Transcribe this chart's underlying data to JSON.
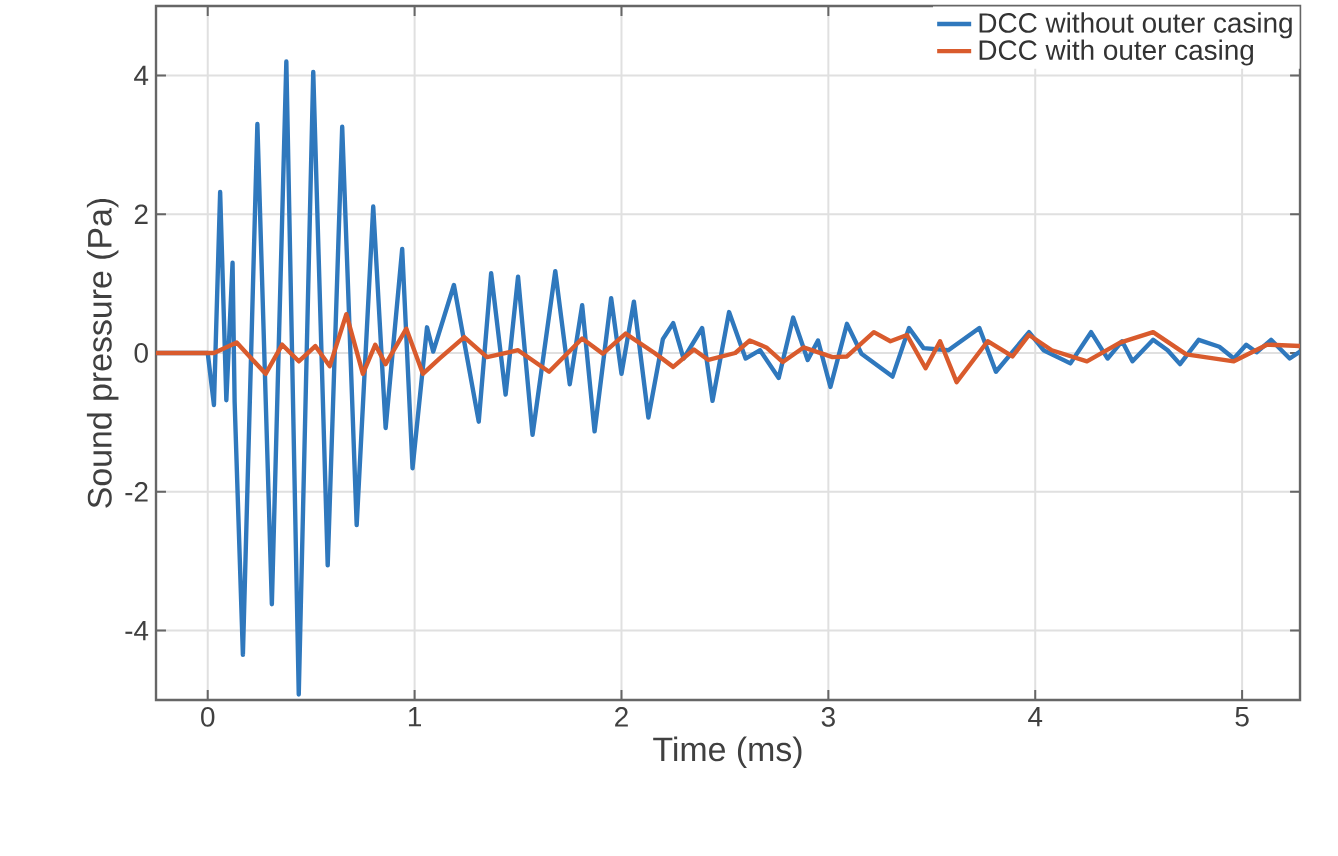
{
  "chart_data": {
    "type": "line",
    "xlabel": "Time (ms)",
    "ylabel": "Sound pressure (Pa)",
    "xlim": [
      -0.25,
      5.28
    ],
    "ylim": [
      -5,
      5
    ],
    "xticks": [
      0,
      1,
      2,
      3,
      4,
      5
    ],
    "yticks": [
      -4,
      -2,
      0,
      2,
      4
    ],
    "grid": true,
    "legend": "top right",
    "line_style": "solid",
    "marker": "none",
    "series": [
      {
        "name": "DCC without outer casing",
        "color": "#2f78bd",
        "x": [
          -0.25,
          0.0,
          0.03,
          0.06,
          0.09,
          0.12,
          0.13,
          0.17,
          0.24,
          0.31,
          0.38,
          0.44,
          0.51,
          0.58,
          0.65,
          0.72,
          0.8,
          0.86,
          0.94,
          0.99,
          1.06,
          1.09,
          1.19,
          1.31,
          1.37,
          1.44,
          1.5,
          1.57,
          1.68,
          1.75,
          1.81,
          1.87,
          1.95,
          2.0,
          2.06,
          2.13,
          2.2,
          2.25,
          2.3,
          2.39,
          2.44,
          2.52,
          2.6,
          2.67,
          2.76,
          2.83,
          2.9,
          2.95,
          3.01,
          3.09,
          3.16,
          3.31,
          3.39,
          3.46,
          3.58,
          3.73,
          3.81,
          3.97,
          4.04,
          4.17,
          4.27,
          4.35,
          4.42,
          4.47,
          4.57,
          4.64,
          4.7,
          4.79,
          4.89,
          4.96,
          5.02,
          5.07,
          5.14,
          5.23,
          5.28
        ],
        "values": [
          0,
          0,
          -0.75,
          2.32,
          -0.68,
          1.3,
          -0.7,
          -4.35,
          3.3,
          -3.62,
          4.2,
          -4.92,
          4.05,
          -3.06,
          3.26,
          -2.48,
          2.11,
          -1.08,
          1.5,
          -1.66,
          0.37,
          0.02,
          0.98,
          -0.99,
          1.15,
          -0.6,
          1.1,
          -1.18,
          1.18,
          -0.45,
          0.69,
          -1.13,
          0.79,
          -0.3,
          0.74,
          -0.93,
          0.2,
          0.43,
          -0.08,
          0.36,
          -0.69,
          0.59,
          -0.08,
          0.04,
          -0.36,
          0.51,
          -0.1,
          0.18,
          -0.49,
          0.42,
          -0.01,
          -0.34,
          0.36,
          0.07,
          0.04,
          0.36,
          -0.27,
          0.3,
          0.04,
          -0.15,
          0.3,
          -0.08,
          0.17,
          -0.12,
          0.19,
          0.04,
          -0.16,
          0.19,
          0.09,
          -0.08,
          0.12,
          0.01,
          0.19,
          -0.08,
          0.02
        ]
      },
      {
        "name": "DCC with outer casing",
        "color": "#d95b2d",
        "x": [
          -0.25,
          0.03,
          0.14,
          0.28,
          0.36,
          0.44,
          0.52,
          0.59,
          0.67,
          0.75,
          0.81,
          0.86,
          0.96,
          1.04,
          1.12,
          1.24,
          1.35,
          1.5,
          1.65,
          1.81,
          1.91,
          2.02,
          2.16,
          2.25,
          2.35,
          2.42,
          2.55,
          2.62,
          2.7,
          2.78,
          2.88,
          3.02,
          3.09,
          3.22,
          3.3,
          3.38,
          3.47,
          3.54,
          3.62,
          3.77,
          3.89,
          3.97,
          4.08,
          4.25,
          4.41,
          4.57,
          4.73,
          4.96,
          5.12,
          5.28
        ],
        "values": [
          0,
          0,
          0.15,
          -0.3,
          0.12,
          -0.12,
          0.1,
          -0.19,
          0.56,
          -0.3,
          0.12,
          -0.16,
          0.35,
          -0.3,
          -0.08,
          0.23,
          -0.06,
          0.04,
          -0.27,
          0.21,
          -0.01,
          0.28,
          0.0,
          -0.2,
          0.05,
          -0.1,
          0.0,
          0.18,
          0.08,
          -0.13,
          0.08,
          -0.06,
          -0.05,
          0.3,
          0.17,
          0.26,
          -0.22,
          0.17,
          -0.42,
          0.17,
          -0.05,
          0.26,
          0.04,
          -0.12,
          0.15,
          0.3,
          -0.02,
          -0.12,
          0.12,
          0.1
        ]
      }
    ]
  }
}
